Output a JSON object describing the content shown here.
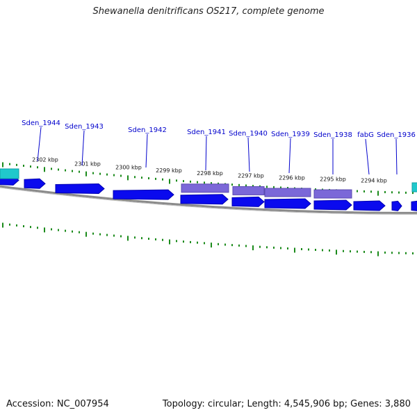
{
  "title": "Shewanella denitrificans OS217, complete genome",
  "accession": "Accession: NC_007954",
  "summary": "Topology: circular; Length: 4,545,906 bp; Genes: 3,880",
  "colors": {
    "gene": "#0a0aee",
    "gene_dark": "#0000b0",
    "rna": "#7b68d8",
    "cyan": "#20c8cc",
    "tick": "#1a8a1a",
    "backbone": "#8a8a8a",
    "label": "#0000cc"
  },
  "genes": [
    {
      "id": "Sden_1944",
      "label": "Sden_1944"
    },
    {
      "id": "Sden_1943",
      "label": "Sden_1943"
    },
    {
      "id": "Sden_1942",
      "label": "Sden_1942"
    },
    {
      "id": "Sden_1941",
      "label": "Sden_1941"
    },
    {
      "id": "Sden_1940",
      "label": "Sden_1940"
    },
    {
      "id": "Sden_1939",
      "label": "Sden_1939"
    },
    {
      "id": "Sden_1938",
      "label": "Sden_1938"
    },
    {
      "id": "fabG",
      "label": "fabG"
    },
    {
      "id": "Sden_1936",
      "label": "Sden_1936"
    }
  ],
  "kbp_ticks": [
    "2302 kbp",
    "2301 kbp",
    "2300 kbp",
    "2299 kbp",
    "2298 kbp",
    "2297 kbp",
    "2296 kbp",
    "2295 kbp",
    "2294 kbp"
  ]
}
